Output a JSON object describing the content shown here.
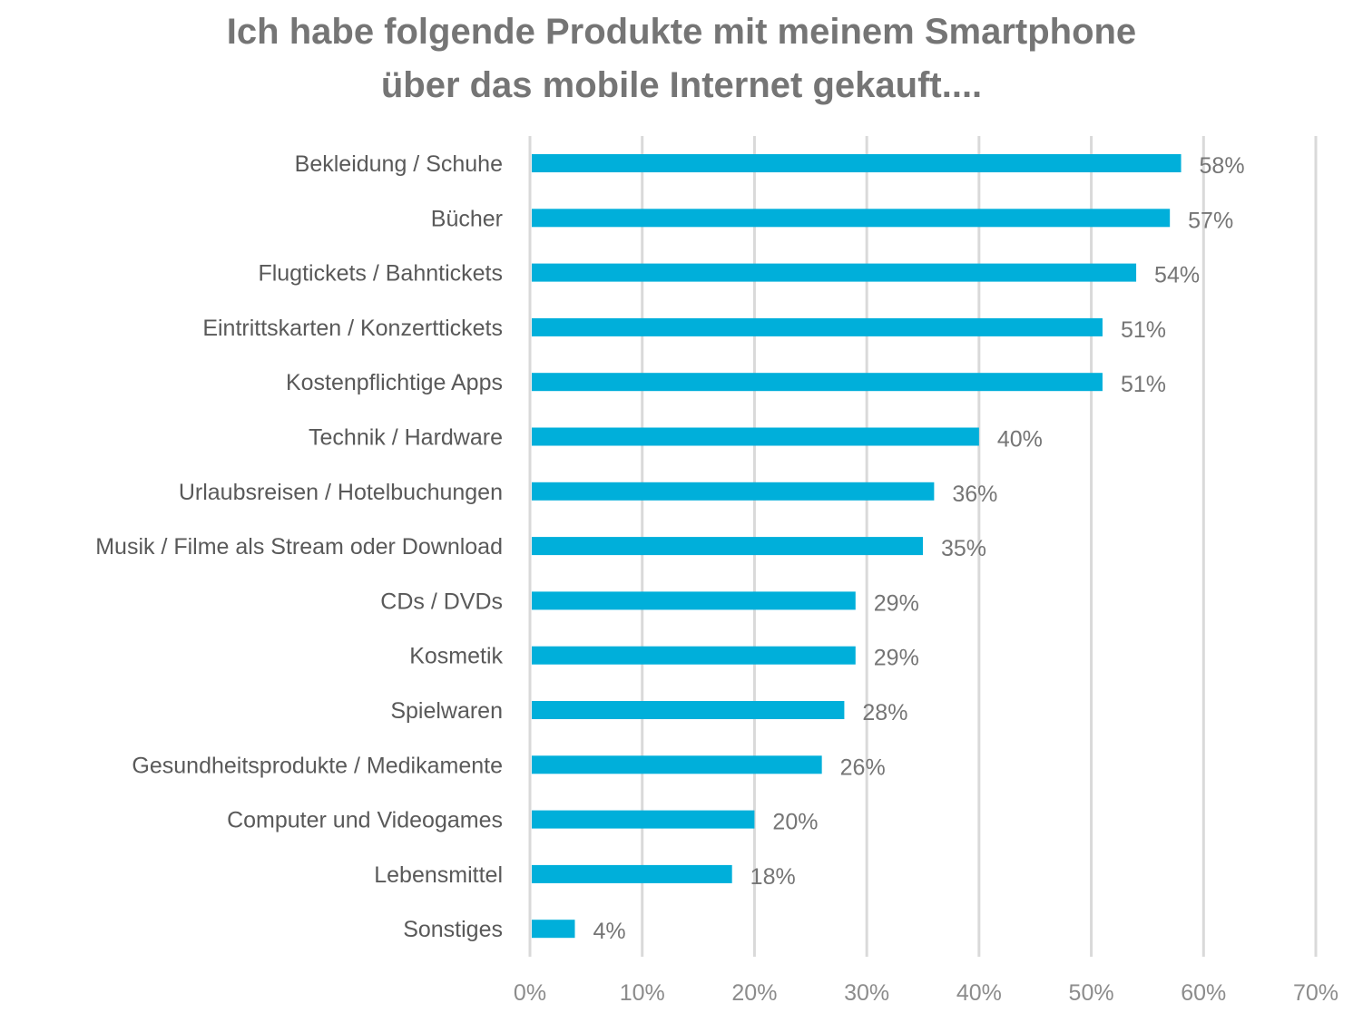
{
  "chart_data": {
    "type": "bar",
    "orientation": "horizontal",
    "title": [
      "Ich habe folgende Produkte mit meinem Smartphone",
      "über das mobile Internet gekauft...."
    ],
    "categories": [
      "Bekleidung / Schuhe",
      "Bücher",
      "Flugtickets / Bahntickets",
      "Eintrittskarten / Konzerttickets",
      "Kostenpflichtige Apps",
      "Technik / Hardware",
      "Urlaubsreisen / Hotelbuchungen",
      "Musik / Filme als Stream oder Download",
      "CDs / DVDs",
      "Kosmetik",
      "Spielwaren",
      "Gesundheitsprodukte / Medikamente",
      "Computer und Videogames",
      "Lebensmittel",
      "Sonstiges"
    ],
    "values": [
      58,
      57,
      54,
      51,
      51,
      40,
      36,
      35,
      29,
      29,
      28,
      26,
      20,
      18,
      4
    ],
    "value_labels": [
      "58%",
      "57%",
      "54%",
      "51%",
      "51%",
      "40%",
      "36%",
      "35%",
      "29%",
      "29%",
      "28%",
      "26%",
      "20%",
      "18%",
      "4%"
    ],
    "xlim": [
      0,
      70
    ],
    "xticks": [
      0,
      10,
      20,
      30,
      40,
      50,
      60,
      70
    ],
    "xtick_labels": [
      "0%",
      "10%",
      "20%",
      "30%",
      "40%",
      "50%",
      "60%",
      "70%"
    ],
    "xlabel": "",
    "ylabel": "",
    "grid": "vertical",
    "bar_color": "#00afda"
  }
}
